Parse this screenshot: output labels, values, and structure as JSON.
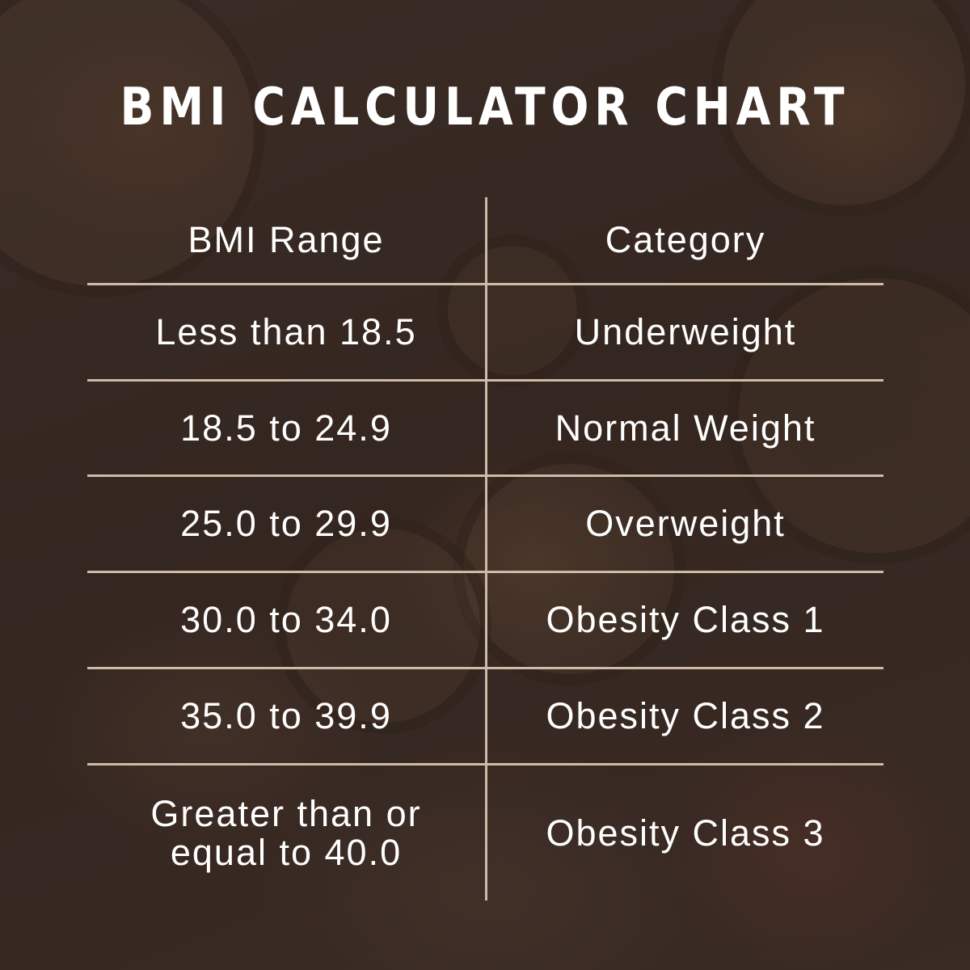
{
  "title": "BMI CALCULATOR CHART",
  "table": {
    "headers": [
      "BMI Range",
      "Category"
    ],
    "rows": [
      [
        "Less than 18.5",
        "Underweight"
      ],
      [
        "18.5 to 24.9",
        "Normal Weight"
      ],
      [
        "25.0 to 29.9",
        "Overweight"
      ],
      [
        "30.0 to 34.0",
        "Obesity Class 1"
      ],
      [
        "35.0 to 39.9",
        "Obesity Class 2"
      ],
      [
        "Greater than or equal to 40.0",
        "Obesity Class 3"
      ]
    ]
  },
  "colors": {
    "text": "#ffffff",
    "rule": "#cdbba8",
    "overlay": "#2d201c"
  }
}
